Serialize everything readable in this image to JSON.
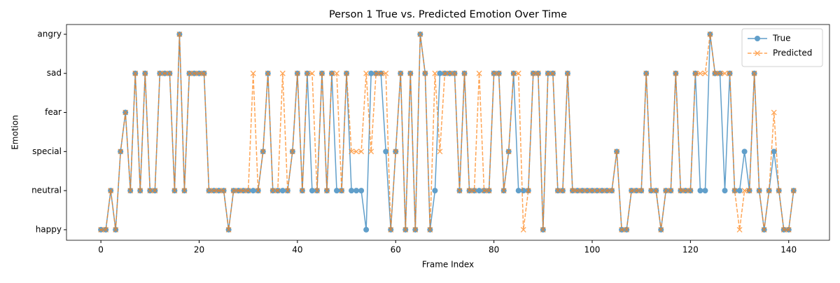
{
  "chart_data": {
    "type": "line",
    "title": "Person 1 True vs. Predicted Emotion Over Time",
    "xlabel": "Frame Index",
    "ylabel": "Emotion",
    "x": [
      0,
      1,
      2,
      3,
      4,
      5,
      6,
      7,
      8,
      9,
      10,
      11,
      12,
      13,
      14,
      15,
      16,
      17,
      18,
      19,
      20,
      21,
      22,
      23,
      24,
      25,
      26,
      27,
      28,
      29,
      30,
      31,
      32,
      33,
      34,
      35,
      36,
      37,
      38,
      39,
      40,
      41,
      42,
      43,
      44,
      45,
      46,
      47,
      48,
      49,
      50,
      51,
      52,
      53,
      54,
      55,
      56,
      57,
      58,
      59,
      60,
      61,
      62,
      63,
      64,
      65,
      66,
      67,
      68,
      69,
      70,
      71,
      72,
      73,
      74,
      75,
      76,
      77,
      78,
      79,
      80,
      81,
      82,
      83,
      84,
      85,
      86,
      87,
      88,
      89,
      90,
      91,
      92,
      93,
      94,
      95,
      96,
      97,
      98,
      99,
      100,
      101,
      102,
      103,
      104,
      105,
      106,
      107,
      108,
      109,
      110,
      111,
      112,
      113,
      114,
      115,
      116,
      117,
      118,
      119,
      120,
      121,
      122,
      123,
      124,
      125,
      126,
      127,
      128,
      129,
      130,
      131,
      132,
      133,
      134,
      135,
      136,
      137,
      138,
      139,
      140,
      141
    ],
    "series": [
      {
        "name": "True",
        "color": "#1f77b4",
        "marker": "o",
        "dashed": false,
        "values": [
          0,
          0,
          1,
          0,
          2,
          3,
          1,
          4,
          1,
          4,
          1,
          1,
          4,
          4,
          4,
          1,
          5,
          1,
          4,
          4,
          4,
          4,
          1,
          1,
          1,
          1,
          0,
          1,
          1,
          1,
          1,
          1,
          1,
          2,
          4,
          1,
          1,
          1,
          1,
          2,
          4,
          1,
          4,
          1,
          1,
          4,
          1,
          4,
          1,
          1,
          4,
          1,
          1,
          1,
          0,
          4,
          4,
          4,
          2,
          0,
          2,
          4,
          0,
          4,
          0,
          5,
          4,
          0,
          1,
          4,
          4,
          4,
          4,
          1,
          4,
          1,
          1,
          1,
          1,
          1,
          4,
          4,
          1,
          2,
          4,
          1,
          1,
          1,
          4,
          4,
          0,
          4,
          4,
          1,
          1,
          4,
          1,
          1,
          1,
          1,
          1,
          1,
          1,
          1,
          1,
          2,
          0,
          0,
          1,
          1,
          1,
          4,
          1,
          1,
          0,
          1,
          1,
          4,
          1,
          1,
          1,
          4,
          1,
          1,
          5,
          4,
          4,
          1,
          4,
          1,
          1,
          2,
          1,
          4,
          1,
          0,
          1,
          2,
          1,
          0,
          0,
          1
        ]
      },
      {
        "name": "Predicted",
        "color": "#ff7f0e",
        "marker": "x",
        "dashed": true,
        "values": [
          0,
          0,
          1,
          0,
          2,
          3,
          1,
          4,
          1,
          4,
          1,
          1,
          4,
          4,
          4,
          1,
          5,
          1,
          4,
          4,
          4,
          4,
          1,
          1,
          1,
          1,
          0,
          1,
          1,
          1,
          1,
          4,
          1,
          2,
          4,
          1,
          1,
          4,
          1,
          2,
          4,
          1,
          4,
          4,
          1,
          4,
          1,
          4,
          4,
          1,
          4,
          2,
          2,
          2,
          4,
          2,
          4,
          4,
          4,
          0,
          2,
          4,
          0,
          4,
          0,
          5,
          4,
          0,
          4,
          2,
          4,
          4,
          4,
          1,
          4,
          1,
          1,
          4,
          1,
          1,
          4,
          4,
          1,
          2,
          4,
          4,
          0,
          1,
          4,
          4,
          0,
          4,
          4,
          1,
          1,
          4,
          1,
          1,
          1,
          1,
          1,
          1,
          1,
          1,
          1,
          2,
          0,
          0,
          1,
          1,
          1,
          4,
          1,
          1,
          0,
          1,
          1,
          4,
          1,
          1,
          1,
          4,
          4,
          4,
          5,
          4,
          4,
          4,
          4,
          1,
          0,
          1,
          1,
          4,
          1,
          0,
          1,
          3,
          1,
          0,
          0,
          1
        ]
      }
    ],
    "xlim": [
      -7,
      148.3
    ],
    "xticks": [
      0,
      20,
      40,
      60,
      80,
      100,
      120,
      140
    ],
    "ylim": [
      -0.27,
      5.25
    ],
    "yticks": [
      {
        "value": 0,
        "label": "happy"
      },
      {
        "value": 1,
        "label": "neutral"
      },
      {
        "value": 2,
        "label": "special"
      },
      {
        "value": 3,
        "label": "fear"
      },
      {
        "value": 4,
        "label": "sad"
      },
      {
        "value": 5,
        "label": "angry"
      }
    ],
    "legend": "upper right",
    "grid": false
  }
}
